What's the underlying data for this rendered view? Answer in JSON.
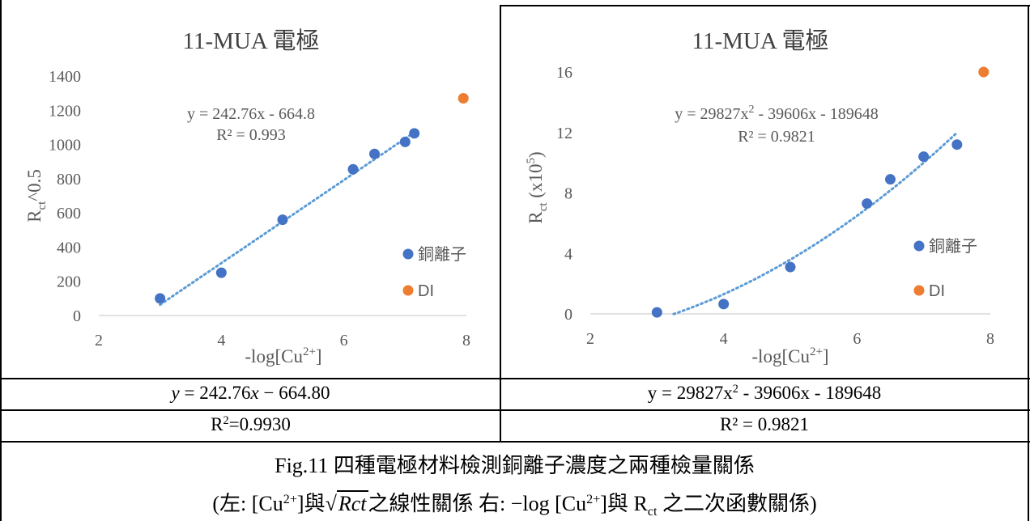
{
  "colors": {
    "series_main": "#4472C4",
    "series_di": "#ED7D31",
    "trend": "#5B9BD5",
    "text": "#595959"
  },
  "chart_data": [
    {
      "type": "scatter",
      "title": "11-MUA 電極",
      "xlabel_base": "-log[Cu",
      "xlabel_sup": "2+",
      "xlabel_end": "]",
      "ylabel_main": "R",
      "ylabel_sub": "ct",
      "ylabel_end": "^0.5",
      "xlim": [
        2,
        8
      ],
      "ylim": [
        0,
        1400
      ],
      "xticks": [
        2,
        4,
        6,
        8
      ],
      "yticks": [
        0,
        200,
        400,
        600,
        800,
        1000,
        1200,
        1400
      ],
      "trendline": {
        "type": "linear",
        "equation": "y = 242.76x - 664.8",
        "r2": "R² = 0.993",
        "slope": 242.76,
        "intercept": -664.8,
        "x_range": [
          3,
          7.15
        ]
      },
      "series": [
        {
          "name": "銅離子",
          "x": [
            3,
            4,
            5,
            6.15,
            6.5,
            7,
            7.15
          ],
          "y": [
            100,
            250,
            560,
            855,
            945,
            1015,
            1065
          ]
        },
        {
          "name": "DI",
          "x": [
            7.95
          ],
          "y": [
            1270
          ]
        }
      ],
      "legend": "right"
    },
    {
      "type": "scatter",
      "title": "11-MUA 電極",
      "xlabel_base": "-log[Cu",
      "xlabel_sup": "2+",
      "xlabel_end": "]",
      "ylabel_main": "R",
      "ylabel_sub": "ct",
      "ylabel_end": " (x10",
      "ylabel_sup": "5",
      "ylabel_close": ")",
      "xlim": [
        2,
        8
      ],
      "ylim": [
        0,
        16
      ],
      "xticks": [
        2,
        4,
        6,
        8
      ],
      "yticks": [
        0,
        4,
        8,
        12,
        16
      ],
      "trendline": {
        "type": "quadratic",
        "equation_base": "y = 29827x",
        "equation_sup": "2",
        "equation_end": " - 39606x - 189648",
        "r2": "R² = 0.9821",
        "x_range": [
          3.25,
          7.5
        ]
      },
      "series": [
        {
          "name": "銅離子",
          "x": [
            3,
            4,
            5,
            6.15,
            6.5,
            7,
            7.5
          ],
          "y": [
            0.1,
            0.65,
            3.1,
            7.3,
            8.9,
            10.4,
            11.2
          ]
        },
        {
          "name": "DI",
          "x": [
            7.9
          ],
          "y": [
            16
          ]
        }
      ],
      "legend": "right"
    }
  ],
  "table": {
    "left_equation": {
      "y": "y",
      "eq": " = 242.76",
      "x": "x",
      "rest": " − 664.80"
    },
    "right_equation": {
      "base": "y = 29827x",
      "sup": "2",
      "rest": " - 39606x - 189648"
    },
    "left_r2": {
      "base": "R",
      "sup": "2",
      "rest": "=0.9930"
    },
    "right_r2": "R² = 0.9821"
  },
  "caption": {
    "line1": "Fig.11  四種電極材料檢測銅離子濃度之兩種檢量關係",
    "line2_a": "(左: [Cu",
    "line2_sup1": "2+",
    "line2_b": "]與",
    "line2_rad": "Rct",
    "line2_c": "之線性關係    右: −log [Cu",
    "line2_sup2": "2+",
    "line2_d": "]與 R",
    "line2_sub": "ct",
    "line2_e": " 之二次函數關係)"
  }
}
